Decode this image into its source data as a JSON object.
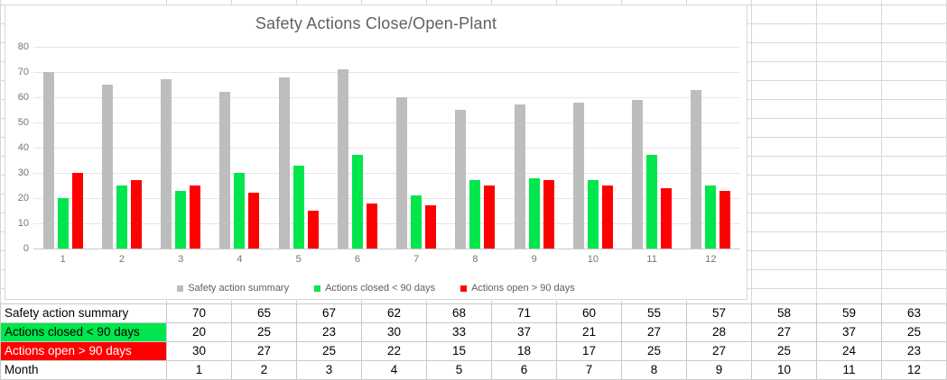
{
  "chart": {
    "title": "Safety Actions Close/Open-Plant"
  },
  "chart_data": {
    "type": "bar",
    "title": "Safety Actions Close/Open-Plant",
    "categories": [
      "1",
      "2",
      "3",
      "4",
      "5",
      "6",
      "7",
      "8",
      "9",
      "10",
      "11",
      "12"
    ],
    "series": [
      {
        "name": "Safety action summary",
        "color": "#bdbdbd",
        "values": [
          70,
          65,
          67,
          62,
          68,
          71,
          60,
          55,
          57,
          58,
          59,
          63
        ]
      },
      {
        "name": "Actions closed < 90 days",
        "color": "#00e64c",
        "values": [
          20,
          25,
          23,
          30,
          33,
          37,
          21,
          27,
          28,
          27,
          37,
          25
        ]
      },
      {
        "name": "Actions open > 90 days",
        "color": "#fe0000",
        "values": [
          30,
          27,
          25,
          22,
          15,
          18,
          17,
          25,
          27,
          25,
          24,
          23
        ]
      }
    ],
    "xlabel": "",
    "ylabel": "",
    "ylim": [
      0,
      80
    ],
    "ytick_step": 10,
    "yticks": [
      "0",
      "10",
      "20",
      "30",
      "40",
      "50",
      "60",
      "70",
      "80"
    ],
    "grid": true,
    "legend_position": "bottom"
  },
  "table": {
    "rows": [
      {
        "label": "Safety action summary",
        "bg": "#ffffff",
        "fg": "#000000",
        "values": [
          "70",
          "65",
          "67",
          "62",
          "68",
          "71",
          "60",
          "55",
          "57",
          "58",
          "59",
          "63"
        ]
      },
      {
        "label": "Actions closed < 90 days",
        "bg": "#00e64c",
        "fg": "#000000",
        "values": [
          "20",
          "25",
          "23",
          "30",
          "33",
          "37",
          "21",
          "27",
          "28",
          "27",
          "37",
          "25"
        ]
      },
      {
        "label": "Actions open > 90 days",
        "bg": "#fe0000",
        "fg": "#ffffff",
        "values": [
          "30",
          "27",
          "25",
          "22",
          "15",
          "18",
          "17",
          "25",
          "27",
          "25",
          "24",
          "23"
        ]
      },
      {
        "label": "Month",
        "bg": "#ffffff",
        "fg": "#000000",
        "values": [
          "1",
          "2",
          "3",
          "4",
          "5",
          "6",
          "7",
          "8",
          "9",
          "10",
          "11",
          "12"
        ]
      }
    ]
  },
  "colors": {
    "chart_text": "#616161",
    "axis_text": "#757575",
    "legend_text": "#5f5f5f",
    "gridline": "#e6e6e6",
    "axis_line": "#c9c9c9",
    "sheet_gridline": "#d7d7d7",
    "table_border": "#c9c9c9",
    "chart_border": "#d9d9d9",
    "series_summary": "#bdbdbd",
    "series_closed": "#00e64c",
    "series_open": "#fe0000"
  }
}
